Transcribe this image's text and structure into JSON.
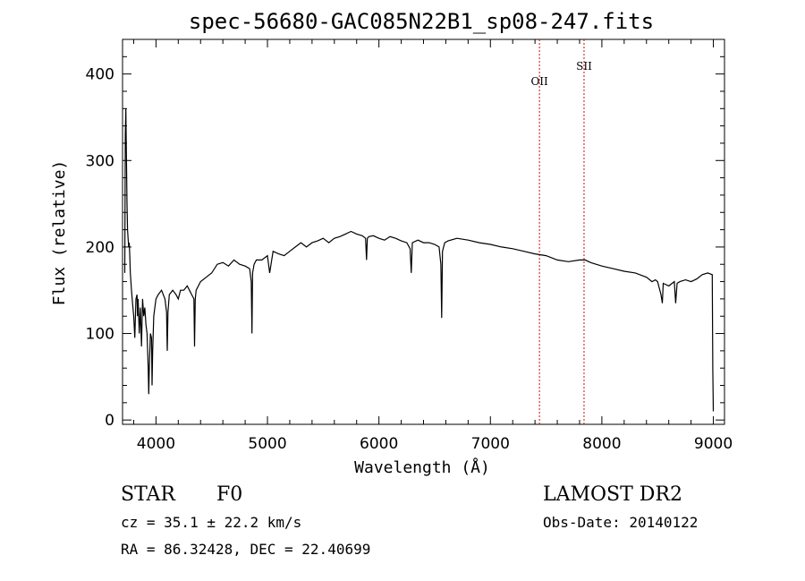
{
  "chart_data": {
    "type": "line",
    "title": "spec-56680-GAC085N22B1_sp08-247.fits",
    "xlabel": "Wavelength (Å)",
    "ylabel": "Flux (relative)",
    "xlim": [
      3700,
      9100
    ],
    "ylim": [
      -5,
      440
    ],
    "xticks": [
      4000,
      5000,
      6000,
      7000,
      8000,
      9000
    ],
    "yticks": [
      0,
      100,
      200,
      300,
      400
    ],
    "line_color": "#000000",
    "marker_color": "#c81010",
    "series": [
      {
        "values_x": [
          3720,
          3725,
          3730,
          3735,
          3740,
          3745,
          3750,
          3755,
          3760,
          3765,
          3770,
          3780,
          3790,
          3800,
          3810,
          3820,
          3830,
          3835,
          3840,
          3850,
          3860,
          3870,
          3880,
          3890,
          3900,
          3910,
          3920,
          3930,
          3935,
          3940,
          3950,
          3960,
          3965,
          3970,
          3980,
          3990,
          4000,
          4020,
          4050,
          4080,
          4095,
          4101,
          4108,
          4120,
          4150,
          4180,
          4200,
          4220,
          4250,
          4280,
          4300,
          4320,
          4340,
          4346,
          4352,
          4360,
          4400,
          4450,
          4500,
          4550,
          4600,
          4650,
          4700,
          4750,
          4800,
          4840,
          4855,
          4861,
          4867,
          4880,
          4900,
          4950,
          5000,
          5020,
          5050,
          5100,
          5150,
          5200,
          5250,
          5300,
          5350,
          5400,
          5450,
          5500,
          5550,
          5600,
          5650,
          5700,
          5750,
          5800,
          5850,
          5880,
          5889,
          5896,
          5910,
          5950,
          6000,
          6050,
          6100,
          6150,
          6200,
          6250,
          6280,
          6290,
          6300,
          6350,
          6400,
          6450,
          6500,
          6540,
          6556,
          6563,
          6570,
          6590,
          6620,
          6700,
          6800,
          6900,
          7000,
          7100,
          7200,
          7300,
          7400,
          7500,
          7600,
          7700,
          7800,
          7850,
          7900,
          8000,
          8100,
          8200,
          8300,
          8400,
          8450,
          8480,
          8500,
          8530,
          8542,
          8550,
          8600,
          8650,
          8662,
          8675,
          8700,
          8750,
          8800,
          8850,
          8900,
          8950,
          8990,
          8995,
          9000
        ],
        "values": [
          170,
          330,
          360,
          300,
          250,
          220,
          210,
          200,
          205,
          190,
          170,
          150,
          135,
          120,
          95,
          140,
          145,
          120,
          140,
          100,
          130,
          85,
          140,
          120,
          130,
          110,
          100,
          60,
          30,
          60,
          100,
          95,
          40,
          80,
          120,
          130,
          140,
          145,
          150,
          140,
          125,
          80,
          125,
          145,
          150,
          145,
          140,
          150,
          150,
          155,
          150,
          145,
          140,
          85,
          140,
          150,
          160,
          165,
          170,
          180,
          182,
          178,
          185,
          180,
          178,
          175,
          160,
          100,
          170,
          180,
          185,
          185,
          190,
          170,
          195,
          192,
          190,
          195,
          200,
          205,
          200,
          205,
          207,
          210,
          205,
          210,
          212,
          215,
          218,
          215,
          213,
          210,
          185,
          210,
          212,
          213,
          210,
          208,
          212,
          210,
          207,
          205,
          198,
          170,
          205,
          208,
          205,
          205,
          203,
          200,
          180,
          118,
          195,
          205,
          207,
          210,
          208,
          205,
          203,
          200,
          198,
          195,
          192,
          190,
          185,
          183,
          185,
          185,
          182,
          178,
          175,
          172,
          170,
          165,
          160,
          162,
          160,
          145,
          135,
          158,
          155,
          160,
          135,
          158,
          160,
          162,
          160,
          163,
          168,
          170,
          168,
          60,
          10
        ]
      }
    ],
    "annotations": [
      {
        "label": "OII",
        "x": 7440
      },
      {
        "label": "SII",
        "x": 7840
      }
    ]
  },
  "info": {
    "object_type": "STAR",
    "subclass": "F0",
    "survey": "LAMOST DR2",
    "cz": "cz = 35.1 ± 22.2 km/s",
    "obs_date": "Obs-Date: 20140122",
    "coords": "RA =  86.32428, DEC =  22.40699"
  }
}
